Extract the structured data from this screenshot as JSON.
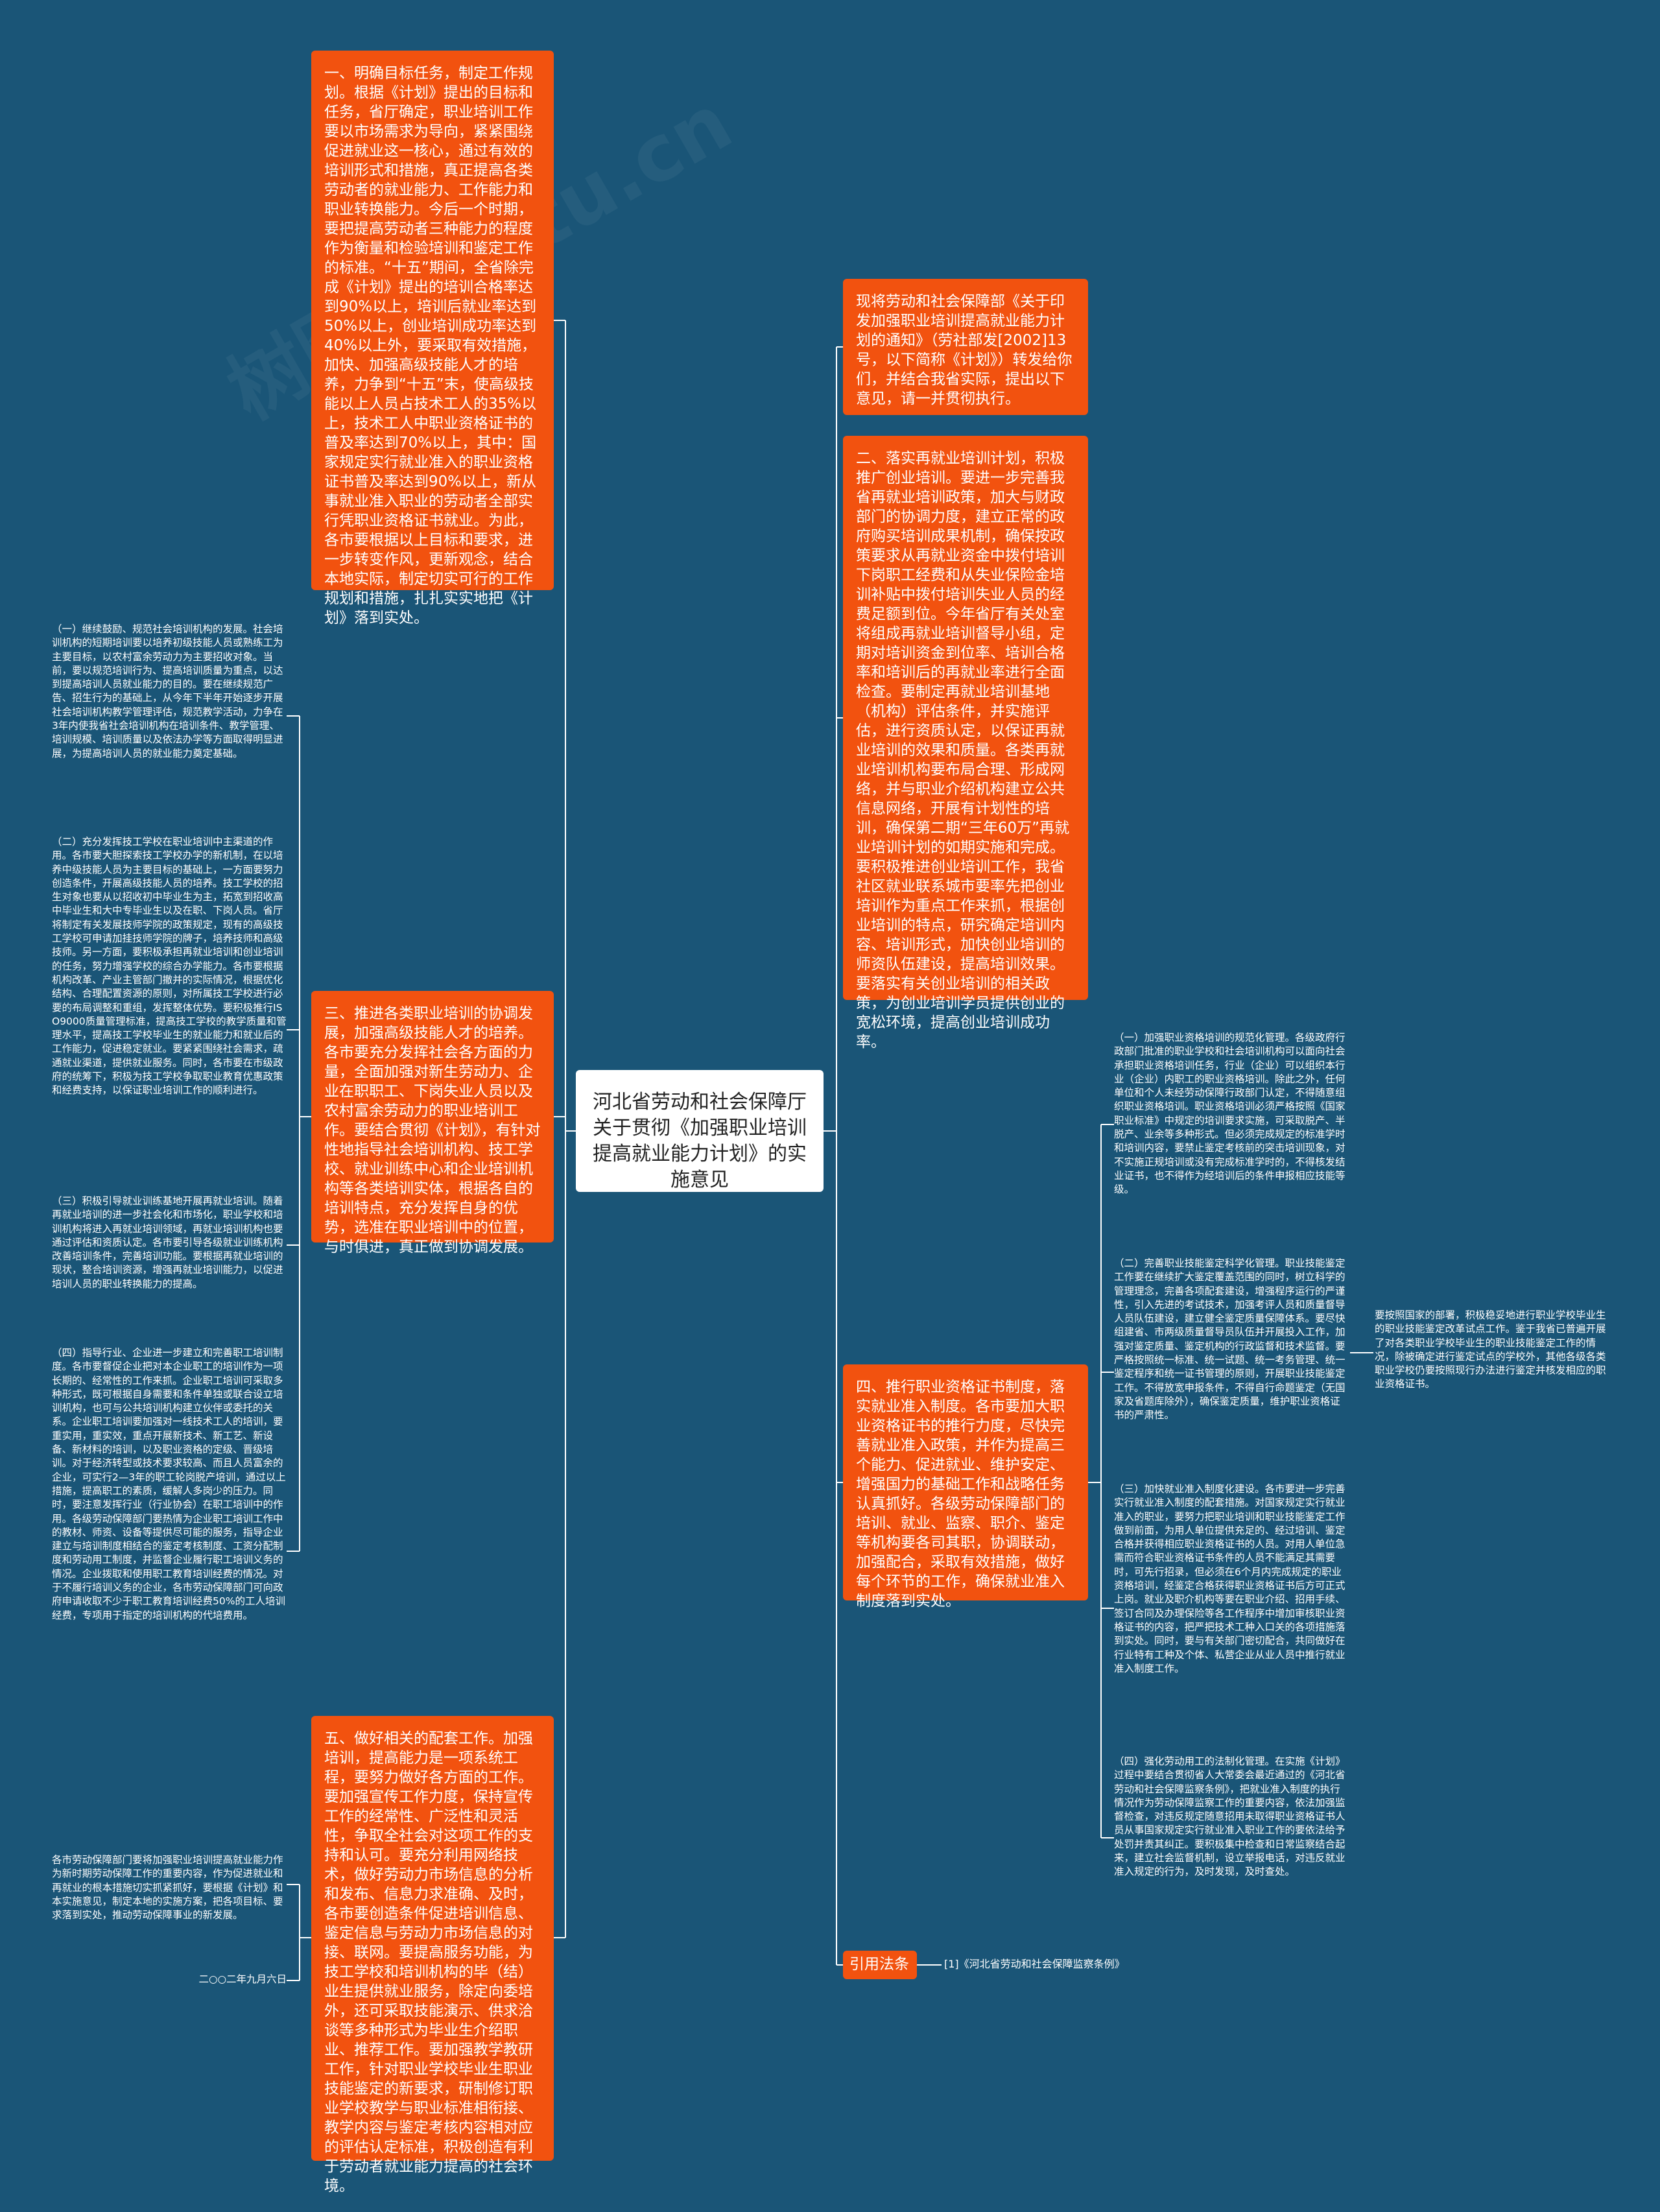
{
  "root": {
    "title": "河北省劳动和社会保障厅关于贯彻《加强职业培训提高就业能力计划》的实施意见"
  },
  "colors": {
    "background": "#1a5577",
    "node": "#f2520f",
    "center": "#ffffff",
    "line": "#ffffff"
  },
  "left": {
    "node1": "一、明确目标任务，制定工作规划。根据《计划》提出的目标和任务，省厅确定，职业培训工作要以市场需求为导向，紧紧围绕促进就业这一核心，通过有效的培训形式和措施，真正提高各类劳动者的就业能力、工作能力和职业转换能力。今后一个时期，要把提高劳动者三种能力的程度作为衡量和检验培训和鉴定工作的标准。“十五”期间，全省除完成《计划》提出的培训合格率达到90%以上，培训后就业率达到50%以上，创业培训成功率达到40%以上外，要采取有效措施，加快、加强高级技能人才的培养，力争到“十五”末，使高级技能以上人员占技术工人的35%以上，技术工人中职业资格证书的普及率达到70%以上，其中：国家规定实行就业准入的职业资格证书普及率达到90%以上，新从事就业准入职业的劳动者全部实行凭职业资格证书就业。为此，各市要根据以上目标和要求，进一步转变作风，更新观念，结合本地实际，制定切实可行的工作规划和措施，扎扎实实地把《计划》落到实处。",
    "node3": "三、推进各类职业培训的协调发展，加强高级技能人才的培养。各市要充分发挥社会各方面的力量，全面加强对新生劳动力、企业在职职工、下岗失业人员以及农村富余劳动力的职业培训工作。要结合贯彻《计划》，有针对性地指导社会培训机构、技工学校、就业训练中心和企业培训机构等各类培训实体，根据各自的培训特点，充分发挥自身的优势，选准在职业培训中的位置，与时俱进，真正做到协调发展。",
    "node5": "五、做好相关的配套工作。加强培训，提高能力是一项系统工程，要努力做好各方面的工作。要加强宣传工作力度，保持宣传工作的经常性、广泛性和灵活性，争取全社会对这项工作的支持和认可。要充分利用网络技术，做好劳动力市场信息的分析和发布、信息力求准确、及时，各市要创造条件促进培训信息、鉴定信息与劳动力市场信息的对接、联网。要提高服务功能，为技工学校和培训机构的毕（结）业生提供就业服务，除定向委培外，还可采取技能演示、供求洽谈等多种形式为毕业生介绍职业、推荐工作。要加强教学教研工作，针对职业学校毕业生职业技能鉴定的新要求，研制修订职业学校教学与职业标准相衔接、教学内容与鉴定考核内容相对应的评估认定标准，积极创造有利于劳动者就业能力提高的社会环境。",
    "leaf3_1": "（一）继续鼓励、规范社会培训机构的发展。社会培训机构的短期培训要以培养初级技能人员或熟练工为主要目标，以农村富余劳动力为主要招收对象。当前，要以规范培训行为、提高培训质量为重点，以达到提高培训人员就业能力的目的。要在继续规范广告、招生行为的基础上，从今年下半年开始逐步开展社会培训机构教学管理评估，规范教学活动，力争在3年内使我省社会培训机构在培训条件、教学管理、培训规模、培训质量以及依法办学等方面取得明显进展，为提高培训人员的就业能力奠定基础。",
    "leaf3_2": "（二）充分发挥技工学校在职业培训中主渠道的作用。各市要大胆探索技工学校办学的新机制，在以培养中级技能人员为主要目标的基础上，一方面要努力创造条件，开展高级技能人员的培养。技工学校的招生对象也要从以招收初中毕业生为主，拓宽到招收高中毕业生和大中专毕业生以及在职、下岗人员。省厅将制定有关发展技师学院的政策规定，现有的高级技工学校可申请加挂技师学院的牌子，培养技师和高级技师。另一方面，要积极承担再就业培训和创业培训的任务，努力增强学校的综合办学能力。各市要根据机构改革、产业主管部门撤并的实际情况，根据优化结构、合理配置资源的原则，对所属技工学校进行必要的布局调整和重组，发挥整体优势。要积极推行ISO9000质量管理标准，提高技工学校的教学质量和管理水平，提高技工学校毕业生的就业能力和就业后的工作能力，促进稳定就业。要紧紧围绕社会需求，疏通就业渠道，提供就业服务。同时，各市要在市级政府的统筹下，积极为技工学校争取职业教育优惠政策和经费支持，以保证职业培训工作的顺利进行。",
    "leaf3_3": "（三）积极引导就业训练基地开展再就业培训。随着再就业培训的进一步社会化和市场化，职业学校和培训机构将进入再就业培训领域，再就业培训机构也要通过评估和资质认定。各市要引导各级就业训练机构改善培训条件，完善培训功能。要根据再就业培训的现状，整合培训资源，增强再就业培训能力，以促进培训人员的职业转换能力的提高。",
    "leaf3_4": "（四）指导行业、企业进一步建立和完善职工培训制度。各市要督促企业把对本企业职工的培训作为一项长期的、经常性的工作来抓。企业职工培训可采取多种形式，既可根据自身需要和条件单独或联合设立培训机构，也可与公共培训机构建立伙伴或委托的关系。企业职工培训要加强对一线技术工人的培训，要重实用，重实效，重点开展新技术、新工艺、新设备、新材料的培训，以及职业资格的定级、晋级培训。对于经济转型或技术要求较高、而且人员富余的企业，可实行2—3年的职工轮岗脱产培训，通过以上措施，提高职工的素质，缓解人多岗少的压力。同时，要注意发挥行业（行业协会）在职工培训中的作用。各级劳动保障部门要热情为企业职工培训工作中的教材、师资、设备等提供尽可能的服务，指导企业建立与培训制度相结合的鉴定考核制度、工资分配制度和劳动用工制度，并监督企业履行职工培训义务的情况。企业拨取和使用职工教育培训经费的情况。对于不履行培训义务的企业，各市劳动保障部门可向政府申请收取不少于职工教育培训经费50%的工人培训经费，专项用于指定的培训机构的代培费用。",
    "leaf5_1": "各市劳动保障部门要将加强职业培训提高就业能力作为新时期劳动保障工作的重要内容，作为促进就业和再就业的根本措施切实抓紧抓好，要根据《计划》和本实施意见，制定本地的实施方案，把各项目标、要求落到实处，推动劳动保障事业的新发展。",
    "leaf5_2": "二○○二年九月六日"
  },
  "right": {
    "intro": "现将劳动和社会保障部《关于印发加强职业培训提高就业能力计划的通知》（劳社部发[2002]13号，以下简称《计划》）转发给你们，并结合我省实际，提出以下意见，请一并贯彻执行。",
    "node2": "二、落实再就业培训计划，积极推广创业培训。要进一步完善我省再就业培训政策，加大与财政部门的协调力度，建立正常的政府购买培训成果机制，确保按政策要求从再就业资金中拨付培训下岗职工经费和从失业保险金培训补贴中拨付培训失业人员的经费足额到位。今年省厅有关处室将组成再就业培训督导小组，定期对培训资金到位率、培训合格率和培训后的再就业率进行全面检查。要制定再就业培训基地（机构）评估条件，并实施评估，进行资质认定，以保证再就业培训的效果和质量。各类再就业培训机构要布局合理、形成网络，并与职业介绍机构建立公共信息网络，开展有计划性的培训，确保第二期“三年60万”再就业培训计划的如期实施和完成。要积极推进创业培训工作，我省社区就业联系城市要率先把创业培训作为重点工作来抓，根据创业培训的特点，研究确定培训内容、培训形式，加快创业培训的师资队伍建设，提高培训效果。要落实有关创业培训的相关政策，为创业培训学员提供创业的宽松环境，提高创业培训成功率。",
    "node4": "四、推行职业资格证书制度，落实就业准入制度。各市要加大职业资格证书的推行力度，尽快完善就业准入政策，并作为提高三个能力、促进就业、维护安定、增强国力的基础工作和战略任务认真抓好。各级劳动保障部门的培训、就业、监察、职介、鉴定等机构要各司其职，协调联动，加强配合，采取有效措施，做好每个环节的工作，确保就业准入制度落到实处。",
    "leaf4_1": "（一）加强职业资格培训的规范化管理。各级政府行政部门批准的职业学校和社会培训机构可以面向社会承担职业资格培训任务，行业（企业）可以组织本行业（企业）内职工的职业资格培训。除此之外，任何单位和个人未经劳动保障行政部门认定，不得随意组织职业资格培训。职业资格培训必须严格按照《国家职业标准》中规定的培训要求实施，可采取脱产、半脱产、业余等多种形式。但必须完成规定的标准学时和培训内容，要禁止鉴定考核前的突击培训现象，对不实施正规培训或没有完成标准学时的，不得核发结业证书，也不得作为经培训后的条件申报相应技能等级。",
    "leaf4_2": "（二）完善职业技能鉴定科学化管理。职业技能鉴定工作要在继续扩大鉴定覆盖范围的同时，树立科学的管理理念，完善各项配套建设，增强程序运行的严谨性，引入先进的考试技术，加强考评人员和质量督导人员队伍建设，建立健全鉴定质量保障体系。要尽快组建省、市两级质量督导员队伍并开展投入工作，加强对鉴定质量、鉴定机构的行政监督和技术监督。要严格按照统一标准、统一试题、统一考务管理、统一鉴定程序和统一证书管理的原则，开展职业技能鉴定工作。不得放宽申报条件，不得自行命题鉴定（无国家及省题库除外），确保鉴定质量，维护职业资格证书的严肃性。",
    "leaf4_2_1": "要按照国家的部署，积极稳妥地进行职业学校毕业生的职业技能鉴定改革试点工作。鉴于我省已普遍开展了对各类职业学校毕业生的职业技能鉴定工作的情况，除被确定进行鉴定试点的学校外，其他各级各类职业学校仍要按照现行办法进行鉴定并核发相应的职业资格证书。",
    "leaf4_3": "（三）加快就业准入制度化建设。各市要进一步完善实行就业准入制度的配套措施。对国家规定实行就业准入的职业，要努力把职业培训和职业技能鉴定工作做到前面，为用人单位提供充足的、经过培训、鉴定合格并获得相应职业资格证书的人员。对用人单位急需而符合职业资格证书条件的人员不能满足其需要时，可先行招录，但必须在6个月内完成规定的职业资格培训，经鉴定合格获得职业资格证书后方可正式上岗。就业及职介机构等要在职业介绍、招用手续、签订合同及办理保险等各工作程序中增加审核职业资格证书的内容，把严把技术工种入口关的各项措施落到实处。同时，要与有关部门密切配合，共同做好在行业特有工种及个体、私营企业从业人员中推行就业准入制度工作。",
    "leaf4_4": "（四）强化劳动用工的法制化管理。在实施《计划》过程中要结合贯彻省人大常委会最近通过的《河北省劳动和社会保障监察条例》，把就业准入制度的执行情况作为劳动保障监察工作的重要内容，依法加强监督检查，对违反规定随意招用未取得职业资格证书人员从事国家规定实行就业准入职业工作的要依法给予处罚并责其纠正。要积极集中检查和日常监察结合起来，建立社会监督机制，设立举报电话，对违反就业准入规定的行为，及时发现，及时查处。",
    "ref_label": "引用法条",
    "ref_item": "[1]《河北省劳动和社会保障监察条例》"
  }
}
